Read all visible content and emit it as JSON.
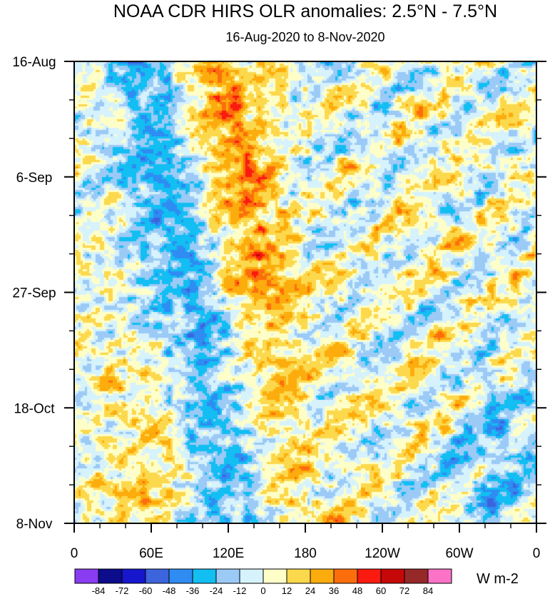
{
  "chart_data": {
    "type": "heatmap",
    "title": "NOAA CDR HIRS OLR anomalies: 2.5°N - 7.5°N",
    "subtitle": "16-Aug-2020 to 8-Nov-2020",
    "x_ticks": [
      "0",
      "60E",
      "120E",
      "180",
      "120W",
      "60W",
      "0"
    ],
    "x_tick_values": [
      0,
      60,
      120,
      180,
      240,
      300,
      360
    ],
    "x_range": [
      0,
      360
    ],
    "y_ticks": [
      "16-Aug",
      "6-Sep",
      "27-Sep",
      "18-Oct",
      "8-Nov"
    ],
    "y_tick_days": [
      0,
      21,
      42,
      63,
      84
    ],
    "y_range_days": [
      0,
      84
    ],
    "colorbar": {
      "labels": [
        "-84",
        "-72",
        "-60",
        "-48",
        "-36",
        "-24",
        "-12",
        "0",
        "12",
        "24",
        "36",
        "48",
        "60",
        "72",
        "84"
      ],
      "colors": [
        "#8a3cf0",
        "#0c0c8c",
        "#1616cc",
        "#3c64dc",
        "#2e8cf2",
        "#12bef2",
        "#9ccaf6",
        "#d6f2fc",
        "#fefec8",
        "#fcd84c",
        "#fcac0c",
        "#fc6e0c",
        "#fa1a10",
        "#c60808",
        "#962828",
        "#fc72c6"
      ],
      "units": "W m-2"
    }
  }
}
